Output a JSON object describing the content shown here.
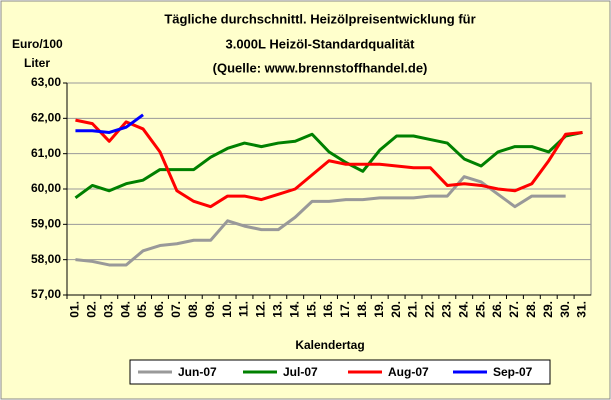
{
  "chart_data": {
    "type": "line",
    "title": "Tägliche durchschnittl. Heizölpreisentwicklung für",
    "subtitle": [
      "3.000L Heizöl-Standardqualität",
      "(Quelle: www.brennstoffhandel.de)"
    ],
    "ylabel": [
      "Euro/100",
      "Liter"
    ],
    "xlabel": "Kalendertag",
    "categories": [
      "01.",
      "02.",
      "03.",
      "04.",
      "05.",
      "06.",
      "07.",
      "08.",
      "09.",
      "10.",
      "11.",
      "12.",
      "13.",
      "14.",
      "15.",
      "16.",
      "17.",
      "18.",
      "19.",
      "20.",
      "21.",
      "22.",
      "23.",
      "24.",
      "25.",
      "26.",
      "27.",
      "28.",
      "29.",
      "30.",
      "31."
    ],
    "ylim": [
      57,
      63
    ],
    "yticks": [
      {
        "value": 57,
        "label": "57,00"
      },
      {
        "value": 58,
        "label": "58,00"
      },
      {
        "value": 59,
        "label": "59,00"
      },
      {
        "value": 60,
        "label": "60,00"
      },
      {
        "value": 61,
        "label": "61,00"
      },
      {
        "value": 62,
        "label": "62,00"
      },
      {
        "value": 63,
        "label": "63,00"
      }
    ],
    "grid": true,
    "legend": "bottom",
    "series": [
      {
        "name": "Jun-07",
        "color": "#999999",
        "values": [
          58.0,
          57.95,
          57.85,
          57.85,
          58.25,
          58.4,
          58.45,
          58.55,
          58.55,
          59.1,
          58.95,
          58.85,
          58.85,
          59.2,
          59.65,
          59.65,
          59.7,
          59.7,
          59.75,
          59.75,
          59.75,
          59.8,
          59.8,
          60.35,
          60.2,
          59.85,
          59.5,
          59.8,
          59.8,
          59.8,
          null
        ]
      },
      {
        "name": "Jul-07",
        "color": "#008000",
        "values": [
          59.75,
          60.1,
          59.95,
          60.15,
          60.25,
          60.55,
          60.55,
          60.55,
          60.9,
          61.15,
          61.3,
          61.2,
          61.3,
          61.35,
          61.55,
          61.05,
          60.75,
          60.5,
          61.1,
          61.5,
          61.5,
          61.4,
          61.3,
          60.85,
          60.65,
          61.05,
          61.2,
          61.2,
          61.05,
          61.5,
          61.6
        ]
      },
      {
        "name": "Aug-07",
        "color": "#ff0000",
        "values": [
          61.95,
          61.85,
          61.35,
          61.9,
          61.7,
          61.05,
          59.95,
          59.65,
          59.5,
          59.8,
          59.8,
          59.7,
          59.85,
          60.0,
          60.4,
          60.8,
          60.7,
          60.7,
          60.7,
          60.65,
          60.6,
          60.6,
          60.1,
          60.15,
          60.1,
          60.0,
          59.95,
          60.15,
          60.8,
          61.55,
          61.6
        ]
      },
      {
        "name": "Sep-07",
        "color": "#0000ff",
        "values": [
          61.65,
          61.65,
          61.6,
          61.75,
          62.1,
          null,
          null,
          null,
          null,
          null,
          null,
          null,
          null,
          null,
          null,
          null,
          null,
          null,
          null,
          null,
          null,
          null,
          null,
          null,
          null,
          null,
          null,
          null,
          null,
          null,
          null
        ]
      }
    ]
  }
}
